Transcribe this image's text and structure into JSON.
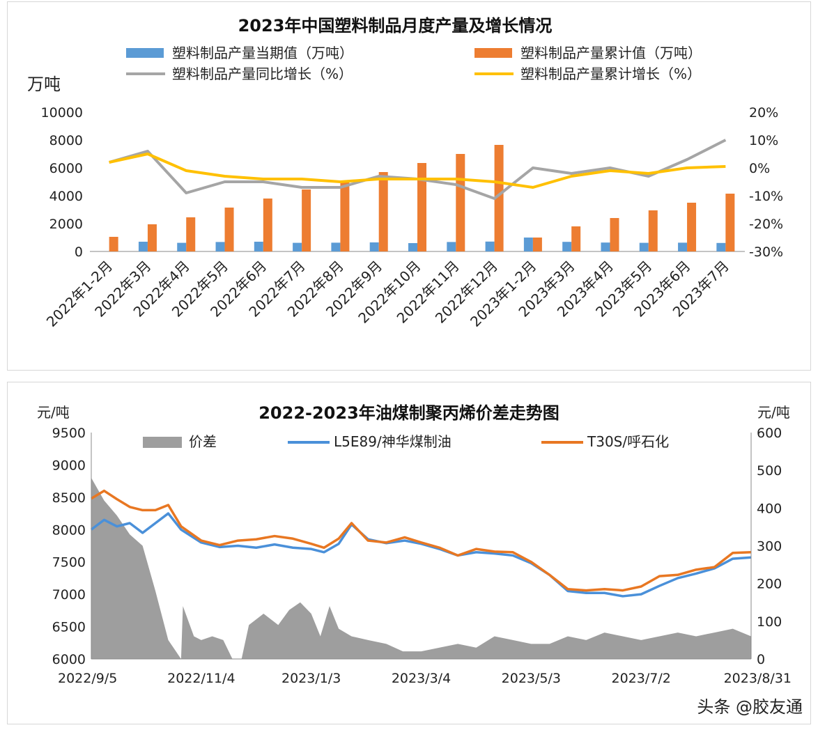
{
  "chart_data": [
    {
      "type": "bar",
      "title": "2023年中国塑料制品月度产量及增长情况",
      "ylabel_left": "万吨",
      "ylim_left": [
        0,
        10000
      ],
      "yticks_left": [
        "0",
        "2000",
        "4000",
        "6000",
        "8000",
        "10000"
      ],
      "ylim_right": [
        -30,
        20
      ],
      "yticks_right": [
        "-30%",
        "-20%",
        "-10%",
        "0%",
        "10%",
        "20%"
      ],
      "categories": [
        "2022年1-2月",
        "2022年3月",
        "2022年4月",
        "2022年5月",
        "2022年6月",
        "2022年7月",
        "2022年8月",
        "2022年9月",
        "2022年10月",
        "2022年11月",
        "2022年12月",
        "2023年1-2月",
        "2023年3月",
        "2023年4月",
        "2023年5月",
        "2023年6月",
        "2023年7月"
      ],
      "series": [
        {
          "name": "塑料制品产量当期值（万吨）",
          "kind": "bar",
          "axis": "left",
          "color": "#5b9bd5",
          "values": [
            null,
            700,
            620,
            680,
            700,
            620,
            630,
            650,
            600,
            680,
            710,
            1000,
            690,
            640,
            620,
            630,
            610
          ]
        },
        {
          "name": "塑料制品产量累计值（万吨）",
          "kind": "bar",
          "axis": "left",
          "color": "#ed7d31",
          "values": [
            1050,
            1950,
            2450,
            3150,
            3800,
            4450,
            5100,
            5700,
            6350,
            7000,
            7650,
            1000,
            1800,
            2400,
            2950,
            3500,
            4150
          ]
        },
        {
          "name": "塑料制品产量同比增长（%）",
          "kind": "line",
          "axis": "right",
          "color": "#a5a5a5",
          "values": [
            2,
            6,
            -9,
            -5,
            -5,
            -7,
            -7,
            -3,
            -4,
            -6,
            -11,
            0,
            -2,
            0,
            -3,
            3,
            10
          ]
        },
        {
          "name": "塑料制品产量累计增长（%）",
          "kind": "line",
          "axis": "right",
          "color": "#ffc000",
          "values": [
            2,
            5,
            -1,
            -3,
            -4,
            -4,
            -5,
            -4,
            -4,
            -4,
            -5,
            -7,
            -3,
            -1,
            -2,
            0,
            0.5
          ]
        }
      ],
      "legend_position": "top",
      "grid": false
    },
    {
      "type": "area",
      "title": "2022-2023年油煤制聚丙烯价差走势图",
      "ylabel_left": "元/吨",
      "ylabel_right": "元/吨",
      "ylim_left": [
        6000,
        9500
      ],
      "yticks_left": [
        "6000",
        "6500",
        "7000",
        "7500",
        "8000",
        "8500",
        "9000",
        "9500"
      ],
      "ylim_right": [
        0,
        600
      ],
      "yticks_right": [
        "0",
        "100",
        "200",
        "300",
        "400",
        "500",
        "600"
      ],
      "x_ticks": [
        "2022/9/5",
        "2022/11/4",
        "2023/1/3",
        "2023/3/4",
        "2023/5/3",
        "2023/7/2",
        "2023/8/31"
      ],
      "series": [
        {
          "name": "价差",
          "kind": "area",
          "axis": "right",
          "color": "#9e9e9e",
          "points": [
            [
              "2022/9/5",
              480
            ],
            [
              "2022/9/12",
              420
            ],
            [
              "2022/9/19",
              380
            ],
            [
              "2022/9/26",
              330
            ],
            [
              "2022/10/3",
              300
            ],
            [
              "2022/10/10",
              180
            ],
            [
              "2022/10/17",
              50
            ],
            [
              "2022/10/24",
              0
            ],
            [
              "2022/10/25",
              140
            ],
            [
              "2022/10/31",
              60
            ],
            [
              "2022/11/4",
              50
            ],
            [
              "2022/11/10",
              60
            ],
            [
              "2022/11/16",
              50
            ],
            [
              "2022/11/21",
              0
            ],
            [
              "2022/11/26",
              0
            ],
            [
              "2022/11/30",
              90
            ],
            [
              "2022/12/8",
              120
            ],
            [
              "2022/12/16",
              90
            ],
            [
              "2022/12/22",
              130
            ],
            [
              "2022/12/28",
              150
            ],
            [
              "2023/1/3",
              120
            ],
            [
              "2023/1/8",
              60
            ],
            [
              "2023/1/13",
              140
            ],
            [
              "2023/1/18",
              80
            ],
            [
              "2023/1/25",
              60
            ],
            [
              "2023/2/3",
              50
            ],
            [
              "2023/2/13",
              40
            ],
            [
              "2023/2/22",
              20
            ],
            [
              "2023/3/4",
              20
            ],
            [
              "2023/3/14",
              30
            ],
            [
              "2023/3/24",
              40
            ],
            [
              "2023/4/3",
              30
            ],
            [
              "2023/4/13",
              60
            ],
            [
              "2023/4/23",
              50
            ],
            [
              "2023/5/3",
              40
            ],
            [
              "2023/5/13",
              40
            ],
            [
              "2023/5/23",
              60
            ],
            [
              "2023/6/2",
              50
            ],
            [
              "2023/6/12",
              70
            ],
            [
              "2023/6/22",
              60
            ],
            [
              "2023/7/2",
              50
            ],
            [
              "2023/7/12",
              60
            ],
            [
              "2023/7/22",
              70
            ],
            [
              "2023/8/1",
              60
            ],
            [
              "2023/8/11",
              70
            ],
            [
              "2023/8/21",
              80
            ],
            [
              "2023/8/31",
              60
            ]
          ]
        },
        {
          "name": "L5E89/神华煤制油",
          "kind": "line",
          "axis": "left",
          "color": "#4a90d9",
          "points": [
            [
              "2022/9/5",
              8000
            ],
            [
              "2022/9/12",
              8150
            ],
            [
              "2022/9/19",
              8050
            ],
            [
              "2022/9/26",
              8100
            ],
            [
              "2022/10/3",
              7950
            ],
            [
              "2022/10/10",
              8100
            ],
            [
              "2022/10/17",
              8250
            ],
            [
              "2022/10/24",
              8000
            ],
            [
              "2022/11/4",
              7800
            ],
            [
              "2022/11/14",
              7730
            ],
            [
              "2022/11/24",
              7750
            ],
            [
              "2022/12/4",
              7720
            ],
            [
              "2022/12/14",
              7770
            ],
            [
              "2022/12/24",
              7720
            ],
            [
              "2023/1/3",
              7700
            ],
            [
              "2023/1/10",
              7650
            ],
            [
              "2023/1/18",
              7780
            ],
            [
              "2023/1/25",
              8080
            ],
            [
              "2023/2/3",
              7850
            ],
            [
              "2023/2/13",
              7790
            ],
            [
              "2023/2/23",
              7830
            ],
            [
              "2023/3/4",
              7780
            ],
            [
              "2023/3/14",
              7700
            ],
            [
              "2023/3/24",
              7600
            ],
            [
              "2023/4/3",
              7650
            ],
            [
              "2023/4/13",
              7630
            ],
            [
              "2023/4/23",
              7600
            ],
            [
              "2023/5/3",
              7480
            ],
            [
              "2023/5/13",
              7300
            ],
            [
              "2023/5/23",
              7050
            ],
            [
              "2023/6/2",
              7020
            ],
            [
              "2023/6/12",
              7020
            ],
            [
              "2023/6/22",
              6970
            ],
            [
              "2023/7/2",
              7000
            ],
            [
              "2023/7/12",
              7130
            ],
            [
              "2023/7/22",
              7250
            ],
            [
              "2023/8/1",
              7320
            ],
            [
              "2023/8/11",
              7400
            ],
            [
              "2023/8/21",
              7550
            ],
            [
              "2023/8/31",
              7570
            ]
          ]
        },
        {
          "name": "T30S/呼石化",
          "kind": "line",
          "axis": "left",
          "color": "#e87722",
          "points": [
            [
              "2022/9/5",
              8480
            ],
            [
              "2022/9/12",
              8600
            ],
            [
              "2022/9/19",
              8470
            ],
            [
              "2022/9/26",
              8350
            ],
            [
              "2022/10/3",
              8300
            ],
            [
              "2022/10/10",
              8300
            ],
            [
              "2022/10/17",
              8380
            ],
            [
              "2022/10/24",
              8050
            ],
            [
              "2022/11/4",
              7830
            ],
            [
              "2022/11/14",
              7760
            ],
            [
              "2022/11/24",
              7830
            ],
            [
              "2022/12/4",
              7850
            ],
            [
              "2022/12/14",
              7900
            ],
            [
              "2022/12/24",
              7860
            ],
            [
              "2023/1/3",
              7780
            ],
            [
              "2023/1/10",
              7720
            ],
            [
              "2023/1/18",
              7860
            ],
            [
              "2023/1/25",
              8100
            ],
            [
              "2023/2/3",
              7830
            ],
            [
              "2023/2/13",
              7800
            ],
            [
              "2023/2/23",
              7880
            ],
            [
              "2023/3/4",
              7800
            ],
            [
              "2023/3/14",
              7720
            ],
            [
              "2023/3/24",
              7600
            ],
            [
              "2023/4/3",
              7700
            ],
            [
              "2023/4/13",
              7660
            ],
            [
              "2023/4/23",
              7650
            ],
            [
              "2023/5/3",
              7500
            ],
            [
              "2023/5/13",
              7300
            ],
            [
              "2023/5/23",
              7080
            ],
            [
              "2023/6/2",
              7060
            ],
            [
              "2023/6/12",
              7080
            ],
            [
              "2023/6/22",
              7060
            ],
            [
              "2023/7/2",
              7120
            ],
            [
              "2023/7/12",
              7280
            ],
            [
              "2023/7/22",
              7300
            ],
            [
              "2023/8/1",
              7380
            ],
            [
              "2023/8/11",
              7420
            ],
            [
              "2023/8/21",
              7640
            ],
            [
              "2023/8/31",
              7650
            ]
          ]
        }
      ],
      "legend_position": "top",
      "grid": false
    }
  ],
  "watermark": "头条 @胶友通"
}
